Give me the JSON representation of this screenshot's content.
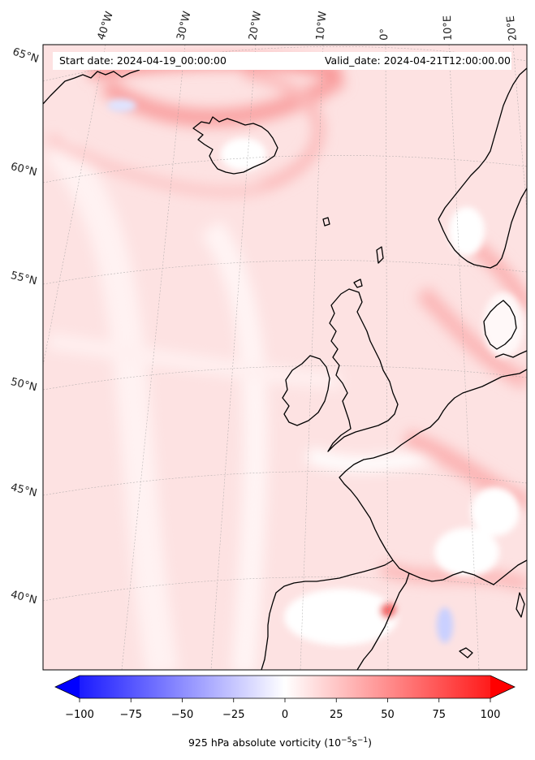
{
  "header": {
    "start_date": "Start date: 2024-04-19_00:00:00",
    "valid_date": "Valid_date: 2024-04-21T12:00:00.00"
  },
  "map": {
    "projection": "conic",
    "lat_labels": [
      "65°N",
      "60°N",
      "55°N",
      "50°N",
      "45°N",
      "40°N"
    ],
    "lon_labels": [
      "40°W",
      "30°W",
      "20°W",
      "10°W",
      "0°",
      "10°E",
      "20°E"
    ],
    "gridlines": true,
    "coastlines": true
  },
  "colorbar": {
    "label": "925 hPa absolute vorticity (10",
    "label_sup1": "−5",
    "label_mid": "s",
    "label_sup2": "−1",
    "label_end": ")",
    "ticks": [
      "−100",
      "−75",
      "−50",
      "−25",
      "0",
      "25",
      "50",
      "75",
      "100"
    ],
    "range": [
      -100,
      100
    ],
    "colormap": "bwr",
    "extend": "both"
  }
}
